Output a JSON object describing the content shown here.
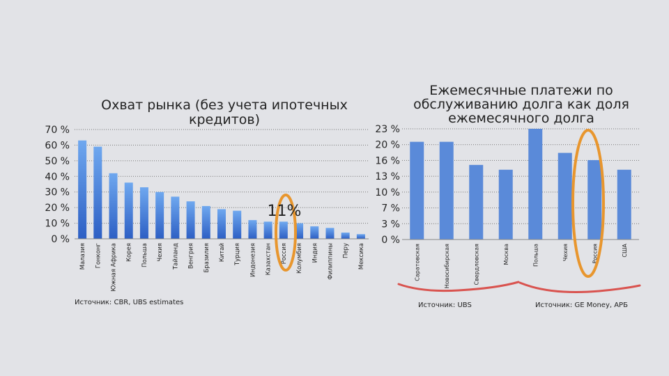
{
  "chart_data": [
    {
      "type": "bar",
      "title_lines": [
        "Охват рынка (без учета ипотечных",
        "кредитов)"
      ],
      "categories": [
        "Малазия",
        "Гонконг",
        "Южная Африка",
        "Корея",
        "Польша",
        "Чехия",
        "Тайланд",
        "Венгрия",
        "Бразилия",
        "Китай",
        "Турция",
        "Индонезия",
        "Казахстан",
        "Россия",
        "Колумбия",
        "Индия",
        "Филиппины",
        "Перу",
        "Мексика"
      ],
      "values": [
        63,
        59,
        42,
        36,
        33,
        30,
        27,
        24,
        21,
        19,
        18,
        12,
        11,
        11,
        10,
        8,
        7,
        4,
        3
      ],
      "ylim": [
        0,
        70
      ],
      "y_ticks": [
        "0 %",
        "10 %",
        "20 %",
        "30 %",
        "40 %",
        "50 %",
        "60 %",
        "70 %"
      ],
      "annotation": "11%",
      "highlight": "Россия",
      "source": "Источник: CBR, UBS estimates",
      "colors": {
        "bar_top": "#6fa8ef",
        "bar_bottom": "#2d5fc4",
        "highlight_ring": "#e8962e"
      }
    },
    {
      "type": "bar",
      "title_lines": [
        "Ежемесячные платежи по",
        "обслуживанию долга как доля",
        "ежемесячного долга"
      ],
      "categories": [
        "Саратовская",
        "Новосибирская",
        "Свердловская",
        "Москва",
        "Польша",
        "Чехия",
        "Россия",
        "США"
      ],
      "values": [
        20.3,
        20.3,
        15.5,
        14.5,
        23,
        18,
        16.5,
        14.5
      ],
      "ylim": [
        0,
        23
      ],
      "y_ticks": [
        "0 %",
        "3 %",
        "7 %",
        "10 %",
        "13 %",
        "16 %",
        "20 %",
        "23 %"
      ],
      "highlight": "Россия",
      "sources": [
        "Источник: UBS",
        "Источник: GE Money, АРБ"
      ],
      "colors": {
        "bar": "#5a8ad9",
        "highlight_ring": "#e8962e",
        "brace": "#d9534f"
      }
    }
  ]
}
